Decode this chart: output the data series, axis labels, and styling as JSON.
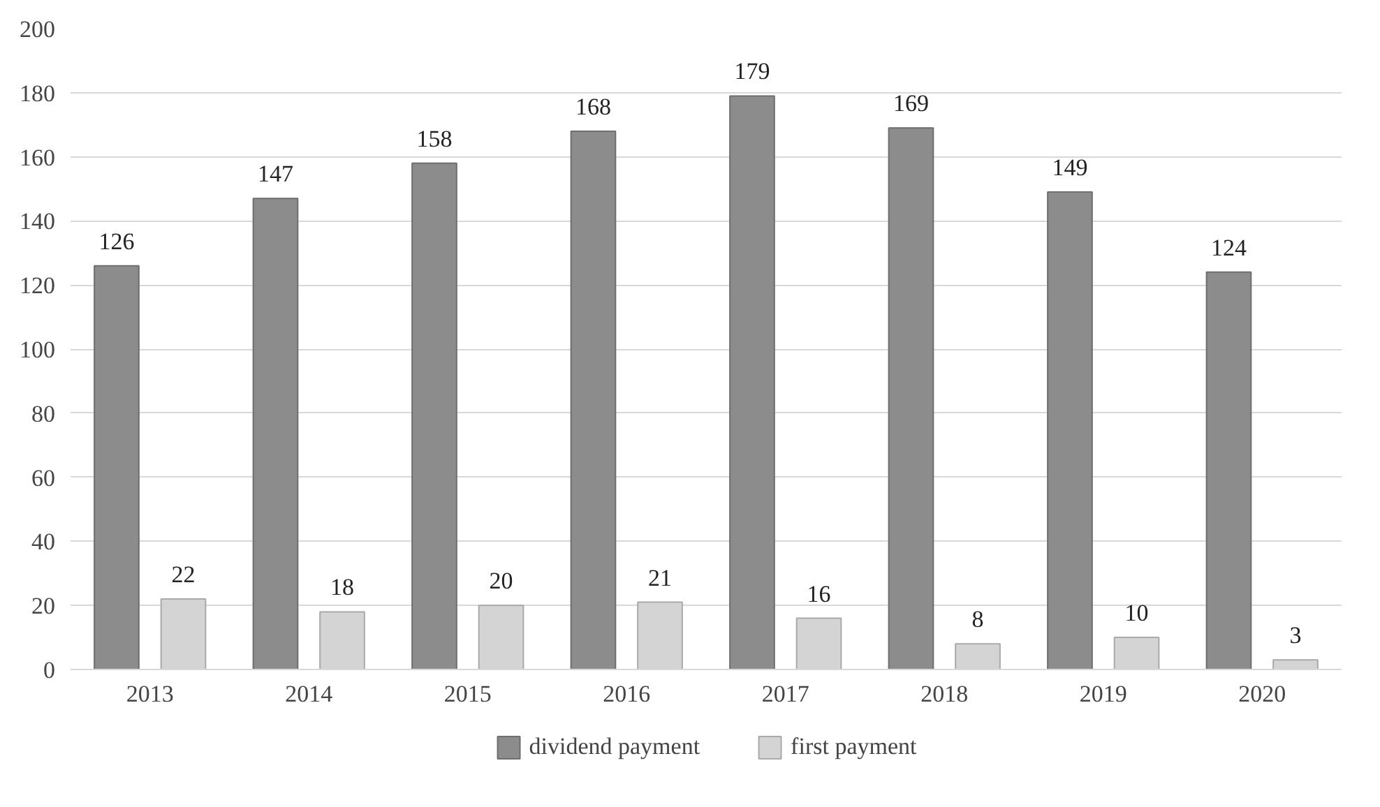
{
  "chart_data": {
    "type": "bar",
    "categories": [
      "2013",
      "2014",
      "2015",
      "2016",
      "2017",
      "2018",
      "2019",
      "2020"
    ],
    "series": [
      {
        "name": "dividend payment",
        "color": "#8c8c8c",
        "values": [
          126,
          147,
          158,
          168,
          179,
          169,
          149,
          124
        ]
      },
      {
        "name": "first payment",
        "color": "#d4d4d4",
        "values": [
          22,
          18,
          20,
          21,
          16,
          8,
          10,
          3
        ]
      }
    ],
    "ylim": [
      0,
      200
    ],
    "yticks": [
      0,
      20,
      40,
      60,
      80,
      100,
      120,
      140,
      160,
      180,
      200
    ],
    "grid": "y",
    "legend": "bottom",
    "data_labels": true
  }
}
